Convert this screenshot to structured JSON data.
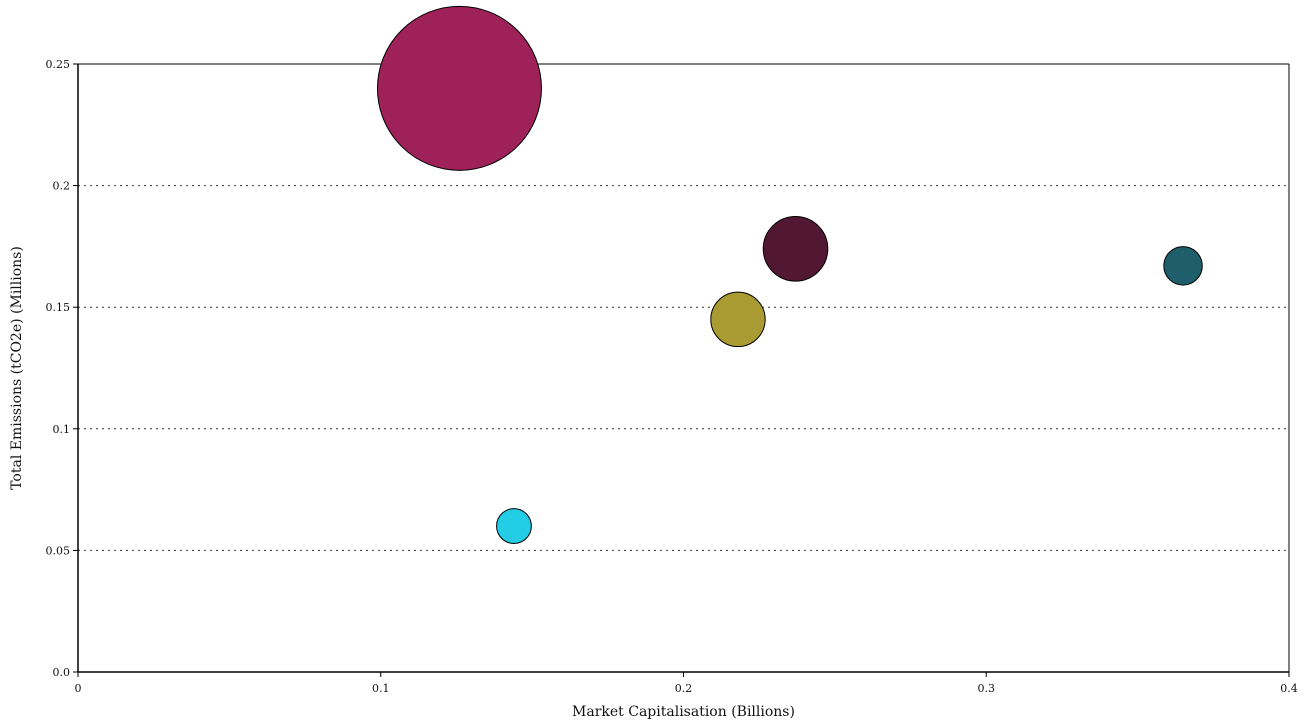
{
  "chart_data": {
    "type": "scatter",
    "title": "",
    "xlabel": "Market Capitalisation (Billions)",
    "ylabel": "Total Emissions (tCO2e) (Millions)",
    "xlim": [
      0,
      0.4
    ],
    "ylim": [
      0,
      0.25
    ],
    "x_ticks": [
      0,
      0.1,
      0.2,
      0.3,
      0.4
    ],
    "x_tick_labels": [
      "0",
      "0.1",
      "0.2",
      "0.3",
      "0.4"
    ],
    "y_ticks": [
      0,
      0.05,
      0.1,
      0.15,
      0.2,
      0.25
    ],
    "y_tick_labels": [
      "0.0",
      "0.05",
      "0.1",
      "0.15",
      "0.2",
      "0.25"
    ],
    "grid": "horizontal dotted",
    "legend": "none",
    "series": [
      {
        "x": 0.126,
        "y": 0.24,
        "size": 1.0,
        "color": "#9e2159"
      },
      {
        "x": 0.237,
        "y": 0.174,
        "size": 0.155,
        "color": "#521833"
      },
      {
        "x": 0.365,
        "y": 0.167,
        "size": 0.055,
        "color": "#1f5f6b"
      },
      {
        "x": 0.218,
        "y": 0.145,
        "size": 0.11,
        "color": "#a99b31"
      },
      {
        "x": 0.144,
        "y": 0.06,
        "size": 0.045,
        "color": "#23cde6"
      }
    ]
  }
}
